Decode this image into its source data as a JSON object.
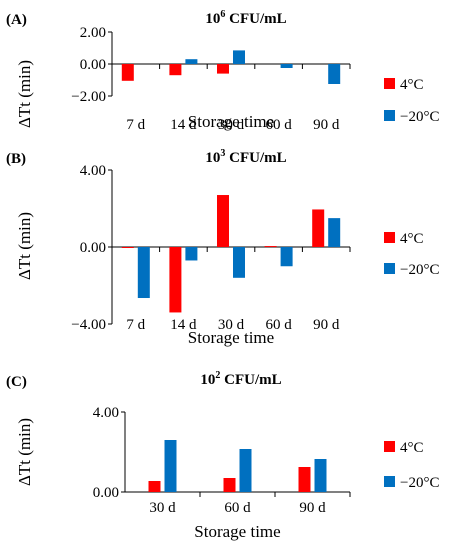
{
  "colors": {
    "s4": "#ff0000",
    "s20": "#0070c0"
  },
  "chart_data": [
    {
      "type": "bar",
      "panel": "(A)",
      "title_base": "10",
      "title_exp": "6",
      "title_unit": " CFU/mL",
      "xlabel": "Storage time",
      "ylabel": "ΔTt (min)",
      "ylim": [
        -2,
        2
      ],
      "yticks": [
        2,
        0,
        -2
      ],
      "ytick_labels": [
        "2.00",
        "0.00",
        "−2.00"
      ],
      "categories": [
        "7 d",
        "14 d",
        "30 d",
        "60 d",
        "90 d"
      ],
      "series": [
        {
          "name": "4°C",
          "values": [
            -1.05,
            -0.7,
            -0.6,
            0.0,
            0.0
          ]
        },
        {
          "name": "−20°C",
          "values": [
            0.0,
            0.3,
            0.85,
            -0.25,
            -1.25
          ]
        }
      ]
    },
    {
      "type": "bar",
      "panel": "(B)",
      "title_base": "10",
      "title_exp": "3",
      "title_unit": " CFU/mL",
      "xlabel": "Storage time",
      "ylabel": "ΔTt (min)",
      "ylim": [
        -4,
        4
      ],
      "yticks": [
        4,
        0,
        -4
      ],
      "ytick_labels": [
        "4.00",
        "0.00",
        "−4.00"
      ],
      "categories": [
        "7 d",
        "14 d",
        "30 d",
        "60 d",
        "90 d"
      ],
      "series": [
        {
          "name": "4°C",
          "values": [
            -0.05,
            -3.4,
            2.7,
            0.05,
            1.95
          ]
        },
        {
          "name": "−20°C",
          "values": [
            -2.65,
            -0.7,
            -1.6,
            -1.0,
            1.5
          ]
        }
      ]
    },
    {
      "type": "bar",
      "panel": "(C)",
      "title_base": "10",
      "title_exp": "2",
      "title_unit": " CFU/mL",
      "xlabel": "Storage time",
      "ylabel": "ΔTt (min)",
      "ylim": [
        0,
        4
      ],
      "yticks": [
        4,
        0
      ],
      "ytick_labels": [
        "4.00",
        "0.00"
      ],
      "categories": [
        "30 d",
        "60 d",
        "90 d"
      ],
      "series": [
        {
          "name": "4°C",
          "values": [
            0.55,
            0.7,
            1.25
          ]
        },
        {
          "name": "−20°C",
          "values": [
            2.6,
            2.15,
            1.65
          ]
        }
      ]
    }
  ]
}
